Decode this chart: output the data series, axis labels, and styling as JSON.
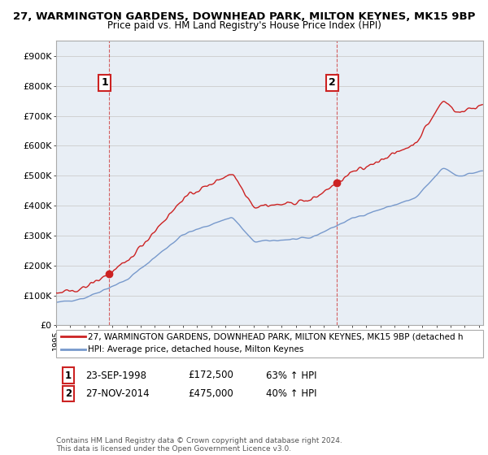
{
  "title": "27, WARMINGTON GARDENS, DOWNHEAD PARK, MILTON KEYNES, MK15 9BP",
  "subtitle": "Price paid vs. HM Land Registry's House Price Index (HPI)",
  "sale1_date": "23-SEP-1998",
  "sale1_price": 172500,
  "sale1_pct": "63%",
  "sale2_date": "27-NOV-2014",
  "sale2_price": 475000,
  "sale2_pct": "40%",
  "legend_label_red": "27, WARMINGTON GARDENS, DOWNHEAD PARK, MILTON KEYNES, MK15 9BP (detached h",
  "legend_label_blue": "HPI: Average price, detached house, Milton Keynes",
  "footer": "Contains HM Land Registry data © Crown copyright and database right 2024.\nThis data is licensed under the Open Government Licence v3.0.",
  "red_color": "#cc2222",
  "blue_color": "#7799cc",
  "grid_color": "#cccccc",
  "chart_bg": "#e8eef5",
  "background_color": "#ffffff",
  "ylim": [
    0,
    950000
  ],
  "yticks": [
    0,
    100000,
    200000,
    300000,
    400000,
    500000,
    600000,
    700000,
    800000,
    900000
  ],
  "xlim_start": 1995.0,
  "xlim_end": 2025.3,
  "sale1_x": 1998.75,
  "sale2_x": 2014.9
}
